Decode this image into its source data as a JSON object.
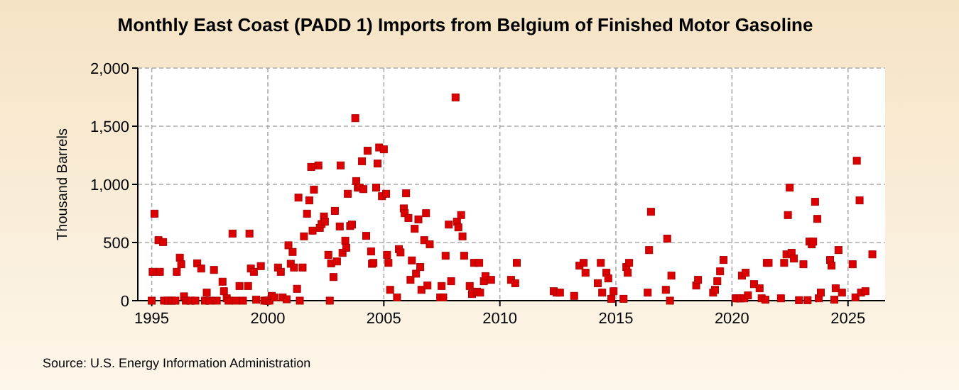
{
  "chart_data": {
    "type": "scatter",
    "title": "Monthly East Coast (PADD 1) Imports from Belgium of Finished Motor Gasoline",
    "ylabel": "Thousand Barrels",
    "annotations": [
      "Source: U.S. Energy Information Administration"
    ],
    "xlim": [
      1994.4,
      2026.6
    ],
    "xticks": [
      1995,
      2000,
      2005,
      2010,
      2015,
      2020,
      2025
    ],
    "ylim": [
      0,
      2000
    ],
    "yticks": [
      0,
      500,
      {
        "value": 1000,
        "label": "1,000"
      },
      {
        "value": 1500,
        "label": "1,500"
      },
      {
        "value": 2000,
        "label": "2,000"
      }
    ],
    "grid": true,
    "marker": "square",
    "series": [
      {
        "color": "#dd0000",
        "x": [
          1995.0,
          1995.04,
          1995.12,
          1995.29,
          1995.35,
          1995.49,
          1995.53,
          1995.7,
          1995.86,
          1996.02,
          1996.08,
          1996.21,
          1996.27,
          1996.39,
          1996.47,
          1996.68,
          1996.88,
          1996.96,
          1997.13,
          1997.29,
          1997.37,
          1997.49,
          1997.68,
          1997.8,
          1998.05,
          1998.11,
          1998.23,
          1998.31,
          1998.48,
          1998.62,
          1998.78,
          1998.93,
          1999.15,
          1999.21,
          1999.27,
          1999.4,
          1999.5,
          1999.7,
          1999.85,
          1999.95,
          2000.07,
          2000.17,
          2000.28,
          2000.44,
          2000.56,
          2000.64,
          2000.81,
          2000.89,
          2000.99,
          2001.07,
          2001.13,
          2001.26,
          2001.32,
          2001.38,
          2001.5,
          2001.56,
          2001.69,
          2001.79,
          2001.87,
          2001.93,
          2001.99,
          2002.18,
          2002.24,
          2002.32,
          2002.42,
          2002.46,
          2002.61,
          2002.67,
          2002.73,
          2002.83,
          2002.89,
          2002.98,
          2003.1,
          2003.14,
          2003.22,
          2003.34,
          2003.38,
          2003.45,
          2003.55,
          2003.63,
          2003.77,
          2003.81,
          2003.88,
          2003.96,
          2004.06,
          2004.12,
          2004.24,
          2004.3,
          2004.45,
          2004.49,
          2004.55,
          2004.67,
          2004.73,
          2004.8,
          2004.92,
          2005.0,
          2005.1,
          2005.14,
          2005.2,
          2005.27,
          2005.57,
          2005.65,
          2005.72,
          2005.86,
          2005.9,
          2005.96,
          2006.06,
          2006.15,
          2006.21,
          2006.33,
          2006.39,
          2006.49,
          2006.57,
          2006.62,
          2006.74,
          2006.82,
          2006.88,
          2006.98,
          2007.43,
          2007.49,
          2007.56,
          2007.66,
          2007.8,
          2007.9,
          2008.09,
          2008.15,
          2008.21,
          2008.33,
          2008.39,
          2008.46,
          2008.7,
          2008.8,
          2008.89,
          2009.02,
          2009.11,
          2009.15,
          2009.31,
          2009.38,
          2009.62,
          2010.48,
          2010.66,
          2010.73,
          2012.32,
          2012.44,
          2012.59,
          2013.2,
          2013.43,
          2013.61,
          2013.69,
          2014.22,
          2014.35,
          2014.41,
          2014.59,
          2014.67,
          2014.8,
          2014.9,
          2015.33,
          2015.45,
          2015.51,
          2015.57,
          2016.37,
          2016.43,
          2016.51,
          2017.15,
          2017.21,
          2017.33,
          2017.39,
          2018.46,
          2018.54,
          2019.19,
          2019.27,
          2019.37,
          2019.49,
          2019.64,
          2020.16,
          2020.26,
          2020.36,
          2020.43,
          2020.53,
          2020.59,
          2020.69,
          2020.95,
          2021.19,
          2021.28,
          2021.44,
          2021.5,
          2021.58,
          2022.11,
          2022.25,
          2022.35,
          2022.41,
          2022.49,
          2022.57,
          2022.67,
          2022.89,
          2023.08,
          2023.26,
          2023.34,
          2023.44,
          2023.5,
          2023.58,
          2023.68,
          2023.74,
          2023.83,
          2024.23,
          2024.29,
          2024.41,
          2024.47,
          2024.59,
          2024.74,
          2025.2,
          2025.32,
          2025.38,
          2025.5,
          2025.56,
          2025.75,
          2026.05
        ],
        "values": [
          0,
          248,
          748,
          520,
          248,
          504,
          0,
          0,
          0,
          0,
          248,
          370,
          313,
          37,
          0,
          0,
          0,
          321,
          276,
          0,
          69,
          0,
          264,
          0,
          163,
          81,
          20,
          0,
          577,
          0,
          126,
          0,
          126,
          577,
          276,
          248,
          8,
          297,
          0,
          0,
          0,
          41,
          28,
          285,
          248,
          28,
          12,
          476,
          317,
          419,
          285,
          102,
          886,
          0,
          285,
          553,
          748,
          862,
          1150,
          602,
          955,
          1163,
          626,
          659,
          724,
          679,
          394,
          0,
          321,
          203,
          772,
          337,
          638,
          1163,
          411,
          516,
          455,
          919,
          642,
          654,
          1569,
          1028,
          972,
          972,
          1199,
          959,
          557,
          1289,
          423,
          317,
          325,
          972,
          1179,
          1317,
          898,
          1301,
          919,
          394,
          325,
          93,
          28,
          443,
          415,
          793,
          752,
          923,
          711,
          179,
          346,
          618,
          232,
          699,
          289,
          93,
          520,
          752,
          130,
          484,
          28,
          126,
          28,
          386,
          654,
          167,
          1748,
          679,
          630,
          736,
          553,
          386,
          126,
          57,
          325,
          77,
          325,
          69,
          167,
          211,
          179,
          179,
          150,
          325,
          81,
          69,
          69,
          41,
          301,
          325,
          240,
          150,
          325,
          69,
          240,
          191,
          16,
          81,
          16,
          289,
          240,
          325,
          69,
          435,
          764,
          93,
          533,
          0,
          215,
          130,
          179,
          69,
          93,
          167,
          252,
          350,
          20,
          20,
          20,
          215,
          20,
          240,
          45,
          142,
          106,
          20,
          8,
          325,
          325,
          20,
          325,
          398,
          736,
          972,
          411,
          362,
          4,
          313,
          4,
          508,
          484,
          508,
          850,
          703,
          20,
          69,
          350,
          301,
          8,
          106,
          435,
          69,
          313,
          28,
          1203,
          862,
          69,
          81,
          398
        ]
      }
    ]
  }
}
